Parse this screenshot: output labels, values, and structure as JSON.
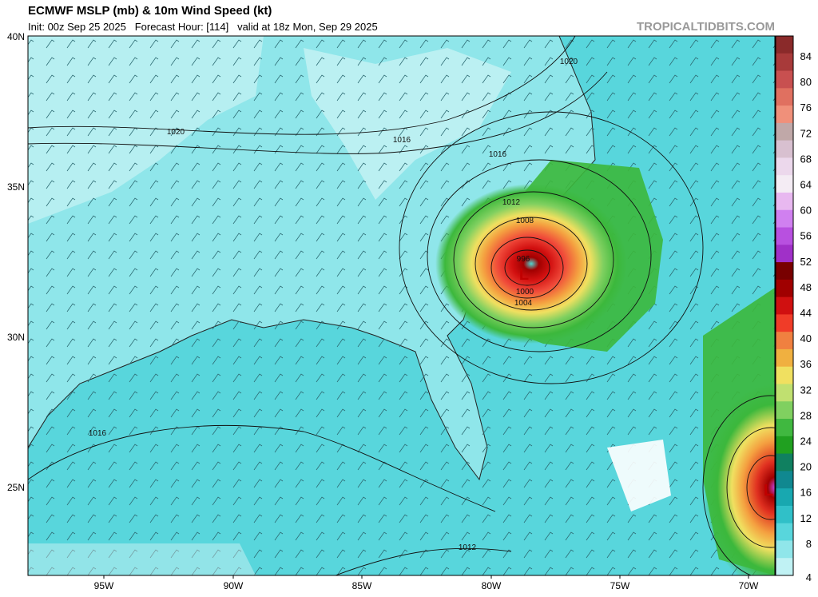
{
  "header": {
    "title": "ECMWF MSLP (mb) & 10m Wind Speed (kt)",
    "subtitle": "Init: 00z Sep 25 2025   Forecast Hour: [114]   valid at 18z Mon, Sep 29 2025",
    "watermark": "TROPICALTIDBITS.COM"
  },
  "map": {
    "lat_labels": [
      "40N",
      "35N",
      "30N",
      "25N"
    ],
    "lon_labels": [
      "95W",
      "90W",
      "85W",
      "80W",
      "75W",
      "70W"
    ],
    "isobar_labels": [
      "1020",
      "1020",
      "1016",
      "1016",
      "1012",
      "1008",
      "996",
      "1000",
      "1004",
      "1016",
      "1012"
    ],
    "low_markers": [
      "L",
      "L"
    ]
  },
  "colorbar": {
    "labels": [
      "84",
      "80",
      "76",
      "72",
      "68",
      "64",
      "60",
      "56",
      "52",
      "48",
      "44",
      "40",
      "36",
      "32",
      "28",
      "24",
      "20",
      "16",
      "12",
      "8",
      "4"
    ]
  }
}
